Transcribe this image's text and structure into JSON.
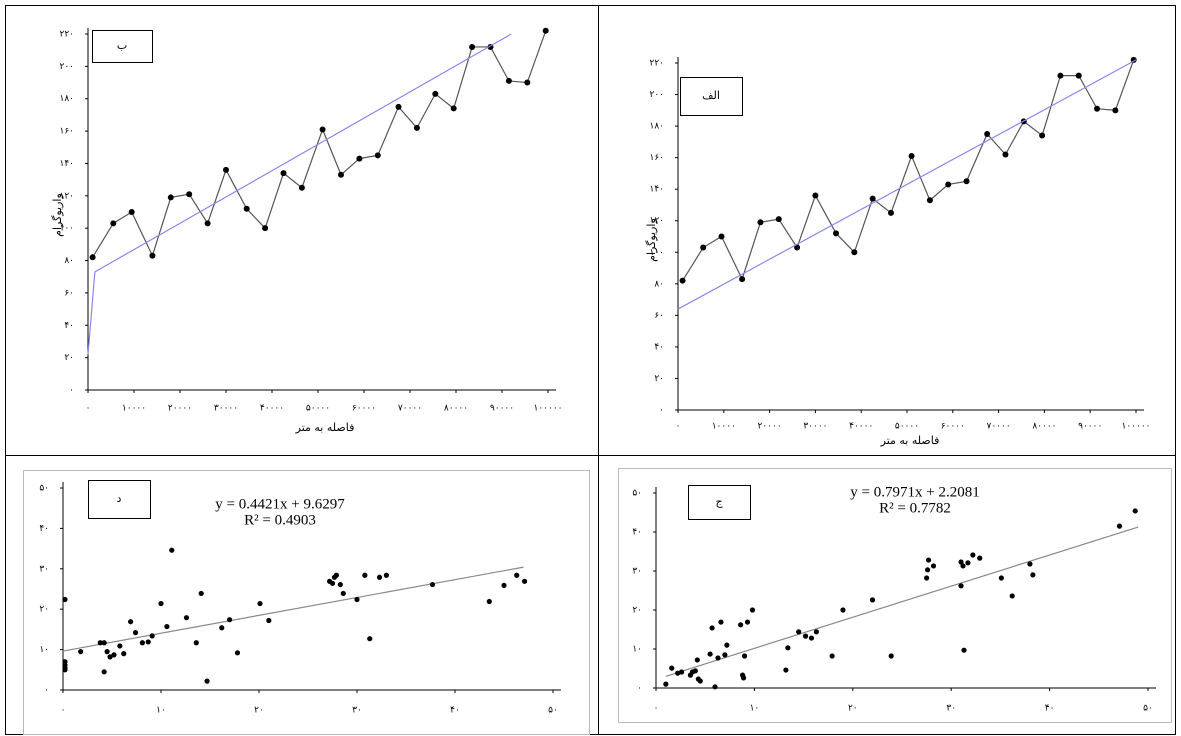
{
  "chart_data": [
    {
      "type": "line",
      "label": "ب",
      "xlabel": "فاصله به متر",
      "ylabel": "واریوگرام",
      "x": [
        1000,
        5500,
        9500,
        14000,
        18000,
        22000,
        26000,
        30000,
        34500,
        38500,
        42500,
        46500,
        51000,
        55000,
        59000,
        63000,
        67500,
        71500,
        75500,
        79500,
        83500,
        87500,
        91500,
        95500,
        99500
      ],
      "series": [
        {
          "color": "#555555",
          "markers": true,
          "values": [
            82,
            103,
            110,
            83,
            119,
            121,
            103,
            136,
            112,
            100,
            134,
            125,
            161,
            133,
            143,
            145,
            175,
            162,
            183,
            174,
            212,
            212,
            191,
            190,
            222
          ]
        },
        {
          "color": "#8888ee",
          "x": [
            0,
            1500,
            92000
          ],
          "values": [
            22,
            73,
            220
          ]
        }
      ],
      "xlim": [
        0,
        100000
      ],
      "ylim": [
        0,
        220
      ],
      "xticks": [
        {
          "value": 0,
          "label": "۰"
        },
        {
          "value": 10000,
          "label": "۱۰۰۰۰"
        },
        {
          "value": 20000,
          "label": "۲۰۰۰۰"
        },
        {
          "value": 30000,
          "label": "۳۰۰۰۰"
        },
        {
          "value": 40000,
          "label": "۴۰۰۰۰"
        },
        {
          "value": 50000,
          "label": "۵۰۰۰۰"
        },
        {
          "value": 60000,
          "label": "۶۰۰۰۰"
        },
        {
          "value": 70000,
          "label": "۷۰۰۰۰"
        },
        {
          "value": 80000,
          "label": "۸۰۰۰۰"
        },
        {
          "value": 90000,
          "label": "۹۰۰۰۰"
        },
        {
          "value": 100000,
          "label": "۱۰۰۰۰۰"
        }
      ],
      "yticks": [
        {
          "value": 0,
          "label": "۰"
        },
        {
          "value": 20,
          "label": "۲۰"
        },
        {
          "value": 40,
          "label": "۴۰"
        },
        {
          "value": 60,
          "label": "۶۰"
        },
        {
          "value": 80,
          "label": "۸۰"
        },
        {
          "value": 100,
          "label": "۱۰۰"
        },
        {
          "value": 120,
          "label": "۱۲۰"
        },
        {
          "value": 140,
          "label": "۱۴۰"
        },
        {
          "value": 160,
          "label": "۱۶۰"
        },
        {
          "value": 180,
          "label": "۱۸۰"
        },
        {
          "value": 200,
          "label": "۲۰۰"
        },
        {
          "value": 220,
          "label": "۲۲۰"
        }
      ]
    },
    {
      "type": "line",
      "label": "الف",
      "xlabel": "فاصله به متر",
      "ylabel": "واریوگرام",
      "x": [
        1000,
        5500,
        9500,
        14000,
        18000,
        22000,
        26000,
        30000,
        34500,
        38500,
        42500,
        46500,
        51000,
        55000,
        59000,
        63000,
        67500,
        71500,
        75500,
        79500,
        83500,
        87500,
        91500,
        95500,
        99500
      ],
      "series": [
        {
          "color": "#555555",
          "markers": true,
          "values": [
            82,
            103,
            110,
            83,
            119,
            121,
            103,
            136,
            112,
            100,
            134,
            125,
            161,
            133,
            143,
            145,
            175,
            162,
            183,
            174,
            212,
            212,
            191,
            190,
            222
          ]
        },
        {
          "color": "#8888ee",
          "x": [
            0,
            100000
          ],
          "values": [
            64,
            222
          ]
        }
      ],
      "xlim": [
        0,
        100000
      ],
      "ylim": [
        0,
        220
      ],
      "xticks": [
        {
          "value": 0,
          "label": "۰"
        },
        {
          "value": 10000,
          "label": "۱۰۰۰۰"
        },
        {
          "value": 20000,
          "label": "۲۰۰۰۰"
        },
        {
          "value": 30000,
          "label": "۳۰۰۰۰"
        },
        {
          "value": 40000,
          "label": "۴۰۰۰۰"
        },
        {
          "value": 50000,
          "label": "۵۰۰۰۰"
        },
        {
          "value": 60000,
          "label": "۶۰۰۰۰"
        },
        {
          "value": 70000,
          "label": "۷۰۰۰۰"
        },
        {
          "value": 80000,
          "label": "۸۰۰۰۰"
        },
        {
          "value": 90000,
          "label": "۹۰۰۰۰"
        },
        {
          "value": 100000,
          "label": "۱۰۰۰۰۰"
        }
      ],
      "yticks": [
        {
          "value": 0,
          "label": "۰"
        },
        {
          "value": 20,
          "label": "۲۰"
        },
        {
          "value": 40,
          "label": "۴۰"
        },
        {
          "value": 60,
          "label": "۶۰"
        },
        {
          "value": 80,
          "label": "۸۰"
        },
        {
          "value": 100,
          "label": "۱۰۰"
        },
        {
          "value": 120,
          "label": "۱۲۰"
        },
        {
          "value": 140,
          "label": "۱۴۰"
        },
        {
          "value": 160,
          "label": "۱۶۰"
        },
        {
          "value": 180,
          "label": "۱۸۰"
        },
        {
          "value": 200,
          "label": "۲۰۰"
        },
        {
          "value": 220,
          "label": "۲۲۰"
        }
      ]
    },
    {
      "type": "scatter",
      "label": "د",
      "equation": "y = 0.4421x + 9.6297",
      "r2": "R² = 0.4903",
      "color": "#000000",
      "x": [
        0.2,
        0.2,
        0.2,
        0.2,
        0.2,
        1.8,
        3.8,
        4.2,
        4.2,
        4.5,
        4.8,
        5.2,
        5.8,
        6.2,
        6.9,
        7.4,
        8.1,
        8.7,
        9.1,
        10.0,
        10.6,
        11.1,
        12.6,
        13.6,
        14.1,
        14.7,
        16.2,
        17.0,
        17.8,
        20.1,
        21.0,
        27.2,
        27.5,
        27.7,
        27.9,
        28.3,
        28.6,
        30.0,
        30.8,
        31.3,
        32.3,
        33.0,
        37.7,
        43.5,
        45.0,
        46.3,
        47.1
      ],
      "values": [
        5.0,
        6.2,
        5.5,
        7.0,
        22.4,
        9.5,
        11.7,
        11.7,
        4.5,
        9.5,
        8.2,
        8.7,
        10.9,
        9.0,
        16.9,
        14.2,
        11.7,
        11.9,
        13.4,
        21.4,
        15.7,
        34.6,
        17.9,
        11.7,
        23.9,
        2.2,
        15.4,
        17.4,
        9.2,
        21.4,
        17.2,
        26.9,
        26.4,
        27.9,
        28.4,
        26.1,
        23.9,
        22.4,
        28.4,
        12.7,
        27.9,
        28.4,
        26.1,
        21.9,
        25.9,
        28.4,
        26.9
      ],
      "trendline": {
        "color": "#888888",
        "x": [
          0,
          47
        ],
        "values": [
          9.63,
          30.41
        ]
      },
      "xlim": [
        0,
        50
      ],
      "ylim": [
        0,
        50
      ],
      "xticks": [
        {
          "value": 0,
          "label": "۰"
        },
        {
          "value": 10,
          "label": "۱۰"
        },
        {
          "value": 20,
          "label": "۲۰"
        },
        {
          "value": 30,
          "label": "۳۰"
        },
        {
          "value": 40,
          "label": "۴۰"
        },
        {
          "value": 50,
          "label": "۵۰"
        }
      ],
      "yticks": [
        {
          "value": 0,
          "label": "۰"
        },
        {
          "value": 10,
          "label": "۱۰"
        },
        {
          "value": 20,
          "label": "۲۰"
        },
        {
          "value": 30,
          "label": "۳۰"
        },
        {
          "value": 40,
          "label": "۴۰"
        },
        {
          "value": 50,
          "label": "۵۰"
        }
      ]
    },
    {
      "type": "scatter",
      "label": "ج",
      "equation": "y = 0.7971x + 2.2081",
      "r2": "R² = 0.7782",
      "color": "#000000",
      "x": [
        1.0,
        1.6,
        2.2,
        2.6,
        3.5,
        3.7,
        4.0,
        4.2,
        4.3,
        4.5,
        5.5,
        5.7,
        6.0,
        6.3,
        6.6,
        7.0,
        7.2,
        8.6,
        8.8,
        8.9,
        9.0,
        9.3,
        9.8,
        13.2,
        13.4,
        14.5,
        15.2,
        15.8,
        16.3,
        17.9,
        19.0,
        22.0,
        23.9,
        27.5,
        27.6,
        27.7,
        28.2,
        31.0,
        31.0,
        31.2,
        31.3,
        31.7,
        32.2,
        32.9,
        35.1,
        36.2,
        38.0,
        38.3,
        47.1,
        48.7
      ],
      "values": [
        1.0,
        5.1,
        3.8,
        4.1,
        3.3,
        4.1,
        4.4,
        7.2,
        2.3,
        1.8,
        8.7,
        15.4,
        0.3,
        7.7,
        16.9,
        8.5,
        11.0,
        16.2,
        3.3,
        2.6,
        8.2,
        16.9,
        20.0,
        4.6,
        10.3,
        14.4,
        13.3,
        12.8,
        14.4,
        8.2,
        20.0,
        22.6,
        8.2,
        28.2,
        30.3,
        32.8,
        31.3,
        32.3,
        26.2,
        31.3,
        9.7,
        32.1,
        34.1,
        33.3,
        28.2,
        23.6,
        31.8,
        29.0,
        41.5,
        45.4
      ],
      "trendline": {
        "color": "#888888",
        "x": [
          1,
          49
        ],
        "values": [
          3.0,
          41.27
        ]
      },
      "xlim": [
        0,
        50
      ],
      "ylim": [
        0,
        50
      ],
      "xticks": [
        {
          "value": 0,
          "label": "۰"
        },
        {
          "value": 10,
          "label": "۱۰"
        },
        {
          "value": 20,
          "label": "۲۰"
        },
        {
          "value": 30,
          "label": "۳۰"
        },
        {
          "value": 40,
          "label": "۴۰"
        },
        {
          "value": 50,
          "label": "۵۰"
        }
      ],
      "yticks": [
        {
          "value": 0,
          "label": "۰"
        },
        {
          "value": 10,
          "label": "۱۰"
        },
        {
          "value": 20,
          "label": "۲۰"
        },
        {
          "value": 30,
          "label": "۳۰"
        },
        {
          "value": 40,
          "label": "۴۰"
        },
        {
          "value": 50,
          "label": "۵۰"
        }
      ]
    }
  ]
}
